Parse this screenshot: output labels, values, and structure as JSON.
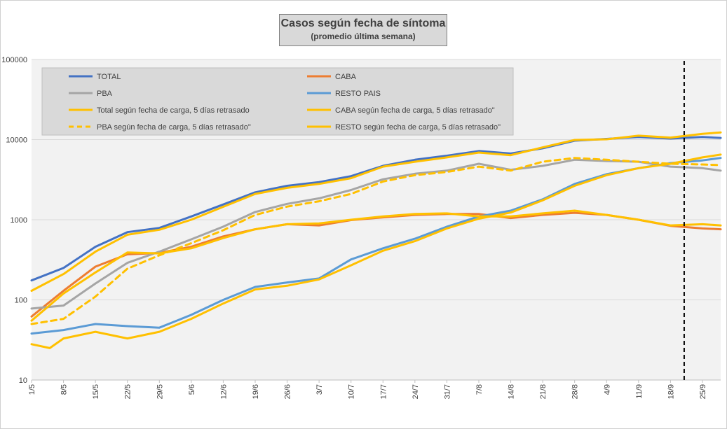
{
  "chart_data": {
    "type": "line",
    "title": "Casos según fecha de síntoma",
    "subtitle": "(promedio última semana)",
    "y_scale": "log",
    "ylim": [
      10,
      100000
    ],
    "y_ticks": [
      "10",
      "100",
      "1000",
      "10000",
      "100000"
    ],
    "x_ticks": [
      "1/5",
      "8/5",
      "15/5",
      "22/5",
      "29/5",
      "5/6",
      "12/6",
      "19/6",
      "26/6",
      "3/7",
      "10/7",
      "17/7",
      "24/7",
      "31/7",
      "7/8",
      "14/8",
      "21/8",
      "28/8",
      "4/9",
      "11/9",
      "18/9",
      "25/9"
    ],
    "x_range": [
      "2020-05-01",
      "2020-09-29"
    ],
    "vertical_marker_date": "2020-09-21",
    "grid": true,
    "legend_placement": "top-left inside plot, two columns",
    "series": [
      {
        "name": "TOTAL",
        "color": "#4472c4",
        "dash": false,
        "points": [
          [
            "2020-05-01",
            175
          ],
          [
            "2020-05-08",
            250
          ],
          [
            "2020-05-15",
            460
          ],
          [
            "2020-05-22",
            700
          ],
          [
            "2020-05-29",
            790
          ],
          [
            "2020-06-05",
            1100
          ],
          [
            "2020-06-12",
            1550
          ],
          [
            "2020-06-19",
            2200
          ],
          [
            "2020-06-26",
            2650
          ],
          [
            "2020-07-03",
            2950
          ],
          [
            "2020-07-10",
            3500
          ],
          [
            "2020-07-17",
            4700
          ],
          [
            "2020-07-24",
            5600
          ],
          [
            "2020-07-31",
            6300
          ],
          [
            "2020-08-07",
            7200
          ],
          [
            "2020-08-14",
            6700
          ],
          [
            "2020-08-21",
            7800
          ],
          [
            "2020-08-28",
            9700
          ],
          [
            "2020-09-04",
            10200
          ],
          [
            "2020-09-11",
            10800
          ],
          [
            "2020-09-18",
            10300
          ],
          [
            "2020-09-25",
            10800
          ],
          [
            "2020-09-29",
            10500
          ]
        ]
      },
      {
        "name": "CABA",
        "color": "#ed7d31",
        "dash": false,
        "points": [
          [
            "2020-05-01",
            62
          ],
          [
            "2020-05-08",
            130
          ],
          [
            "2020-05-15",
            260
          ],
          [
            "2020-05-22",
            370
          ],
          [
            "2020-05-29",
            385
          ],
          [
            "2020-06-05",
            460
          ],
          [
            "2020-06-12",
            620
          ],
          [
            "2020-06-19",
            760
          ],
          [
            "2020-06-26",
            880
          ],
          [
            "2020-07-03",
            850
          ],
          [
            "2020-07-10",
            990
          ],
          [
            "2020-07-17",
            1070
          ],
          [
            "2020-07-24",
            1150
          ],
          [
            "2020-07-31",
            1180
          ],
          [
            "2020-08-07",
            1180
          ],
          [
            "2020-08-14",
            1050
          ],
          [
            "2020-08-21",
            1150
          ],
          [
            "2020-08-28",
            1220
          ],
          [
            "2020-09-04",
            1150
          ],
          [
            "2020-09-11",
            1000
          ],
          [
            "2020-09-18",
            840
          ],
          [
            "2020-09-25",
            780
          ],
          [
            "2020-09-29",
            760
          ]
        ]
      },
      {
        "name": "PBA",
        "color": "#a5a5a5",
        "dash": false,
        "points": [
          [
            "2020-05-01",
            78
          ],
          [
            "2020-05-08",
            85
          ],
          [
            "2020-05-15",
            160
          ],
          [
            "2020-05-22",
            290
          ],
          [
            "2020-05-29",
            400
          ],
          [
            "2020-06-05",
            570
          ],
          [
            "2020-06-12",
            820
          ],
          [
            "2020-06-19",
            1250
          ],
          [
            "2020-06-26",
            1580
          ],
          [
            "2020-07-03",
            1850
          ],
          [
            "2020-07-10",
            2350
          ],
          [
            "2020-07-17",
            3200
          ],
          [
            "2020-07-24",
            3750
          ],
          [
            "2020-07-31",
            4100
          ],
          [
            "2020-08-07",
            5000
          ],
          [
            "2020-08-14",
            4200
          ],
          [
            "2020-08-21",
            4700
          ],
          [
            "2020-08-28",
            5600
          ],
          [
            "2020-09-04",
            5400
          ],
          [
            "2020-09-11",
            5300
          ],
          [
            "2020-09-18",
            4600
          ],
          [
            "2020-09-25",
            4400
          ],
          [
            "2020-09-29",
            4100
          ]
        ]
      },
      {
        "name": "RESTO PAIS",
        "color": "#5b9bd5",
        "dash": false,
        "points": [
          [
            "2020-05-01",
            38
          ],
          [
            "2020-05-08",
            42
          ],
          [
            "2020-05-15",
            50
          ],
          [
            "2020-05-22",
            47
          ],
          [
            "2020-05-29",
            45
          ],
          [
            "2020-06-05",
            65
          ],
          [
            "2020-06-12",
            100
          ],
          [
            "2020-06-19",
            145
          ],
          [
            "2020-06-26",
            165
          ],
          [
            "2020-07-03",
            185
          ],
          [
            "2020-07-10",
            320
          ],
          [
            "2020-07-17",
            440
          ],
          [
            "2020-07-24",
            580
          ],
          [
            "2020-07-31",
            820
          ],
          [
            "2020-08-07",
            1100
          ],
          [
            "2020-08-14",
            1300
          ],
          [
            "2020-08-21",
            1800
          ],
          [
            "2020-08-28",
            2800
          ],
          [
            "2020-09-04",
            3700
          ],
          [
            "2020-09-11",
            4400
          ],
          [
            "2020-09-18",
            5100
          ],
          [
            "2020-09-25",
            5500
          ],
          [
            "2020-09-29",
            5900
          ]
        ]
      },
      {
        "name": "Total según fecha de carga, 5 días retrasado",
        "color": "#ffc000",
        "dash": false,
        "points": [
          [
            "2020-05-01",
            130
          ],
          [
            "2020-05-08",
            210
          ],
          [
            "2020-05-15",
            400
          ],
          [
            "2020-05-22",
            650
          ],
          [
            "2020-05-29",
            750
          ],
          [
            "2020-06-05",
            1000
          ],
          [
            "2020-06-12",
            1450
          ],
          [
            "2020-06-19",
            2100
          ],
          [
            "2020-06-26",
            2500
          ],
          [
            "2020-07-03",
            2800
          ],
          [
            "2020-07-10",
            3300
          ],
          [
            "2020-07-17",
            4600
          ],
          [
            "2020-07-24",
            5300
          ],
          [
            "2020-07-31",
            6000
          ],
          [
            "2020-08-07",
            6900
          ],
          [
            "2020-08-14",
            6400
          ],
          [
            "2020-08-21",
            8000
          ],
          [
            "2020-08-28",
            9900
          ],
          [
            "2020-09-04",
            10100
          ],
          [
            "2020-09-11",
            11200
          ],
          [
            "2020-09-18",
            10600
          ],
          [
            "2020-09-25",
            11800
          ],
          [
            "2020-09-29",
            12300
          ]
        ]
      },
      {
        "name": "CABA según fecha de carga, 5 días retrasado\"",
        "color": "#ffc000",
        "dash": false,
        "points": [
          [
            "2020-05-01",
            55
          ],
          [
            "2020-05-08",
            120
          ],
          [
            "2020-05-15",
            220
          ],
          [
            "2020-05-22",
            390
          ],
          [
            "2020-05-29",
            380
          ],
          [
            "2020-06-05",
            440
          ],
          [
            "2020-06-12",
            590
          ],
          [
            "2020-06-19",
            760
          ],
          [
            "2020-06-26",
            880
          ],
          [
            "2020-07-03",
            900
          ],
          [
            "2020-07-10",
            1000
          ],
          [
            "2020-07-17",
            1100
          ],
          [
            "2020-07-24",
            1180
          ],
          [
            "2020-07-31",
            1200
          ],
          [
            "2020-08-07",
            1100
          ],
          [
            "2020-08-14",
            1100
          ],
          [
            "2020-08-21",
            1200
          ],
          [
            "2020-08-28",
            1300
          ],
          [
            "2020-09-04",
            1150
          ],
          [
            "2020-09-11",
            1000
          ],
          [
            "2020-09-18",
            850
          ],
          [
            "2020-09-25",
            880
          ],
          [
            "2020-09-29",
            850
          ]
        ]
      },
      {
        "name": "PBA según fecha de carga, 5 días retrasado\"",
        "color": "#ffc000",
        "dash": true,
        "points": [
          [
            "2020-05-01",
            50
          ],
          [
            "2020-05-08",
            58
          ],
          [
            "2020-05-15",
            110
          ],
          [
            "2020-05-22",
            245
          ],
          [
            "2020-05-29",
            360
          ],
          [
            "2020-06-05",
            510
          ],
          [
            "2020-06-12",
            740
          ],
          [
            "2020-06-19",
            1150
          ],
          [
            "2020-06-26",
            1460
          ],
          [
            "2020-07-03",
            1700
          ],
          [
            "2020-07-10",
            2100
          ],
          [
            "2020-07-17",
            3000
          ],
          [
            "2020-07-24",
            3600
          ],
          [
            "2020-07-31",
            3950
          ],
          [
            "2020-08-07",
            4600
          ],
          [
            "2020-08-14",
            4100
          ],
          [
            "2020-08-21",
            5300
          ],
          [
            "2020-08-28",
            5900
          ],
          [
            "2020-09-04",
            5600
          ],
          [
            "2020-09-11",
            5300
          ],
          [
            "2020-09-18",
            5000
          ],
          [
            "2020-09-25",
            4900
          ],
          [
            "2020-09-29",
            4800
          ]
        ]
      },
      {
        "name": "RESTO según fecha de carga, 5 días retrasado\"",
        "color": "#ffc000",
        "dash": false,
        "points": [
          [
            "2020-05-01",
            28
          ],
          [
            "2020-05-05",
            25
          ],
          [
            "2020-05-08",
            33
          ],
          [
            "2020-05-15",
            40
          ],
          [
            "2020-05-22",
            33
          ],
          [
            "2020-05-29",
            40
          ],
          [
            "2020-06-05",
            58
          ],
          [
            "2020-06-12",
            90
          ],
          [
            "2020-06-19",
            135
          ],
          [
            "2020-06-26",
            150
          ],
          [
            "2020-07-03",
            180
          ],
          [
            "2020-07-10",
            270
          ],
          [
            "2020-07-17",
            410
          ],
          [
            "2020-07-24",
            540
          ],
          [
            "2020-07-31",
            780
          ],
          [
            "2020-08-07",
            1030
          ],
          [
            "2020-08-14",
            1230
          ],
          [
            "2020-08-21",
            1750
          ],
          [
            "2020-08-28",
            2650
          ],
          [
            "2020-09-04",
            3600
          ],
          [
            "2020-09-11",
            4400
          ],
          [
            "2020-09-18",
            5000
          ],
          [
            "2020-09-25",
            6000
          ],
          [
            "2020-09-29",
            6500
          ]
        ]
      }
    ],
    "legend": [
      [
        "TOTAL",
        "CABA"
      ],
      [
        "PBA",
        "RESTO PAIS"
      ],
      [
        "Total según fecha de carga, 5 días retrasado",
        "CABA según fecha de carga, 5 días retrasado\""
      ],
      [
        "PBA según fecha de carga, 5 días retrasado\"",
        "RESTO según fecha de carga, 5 días retrasado\""
      ]
    ]
  }
}
